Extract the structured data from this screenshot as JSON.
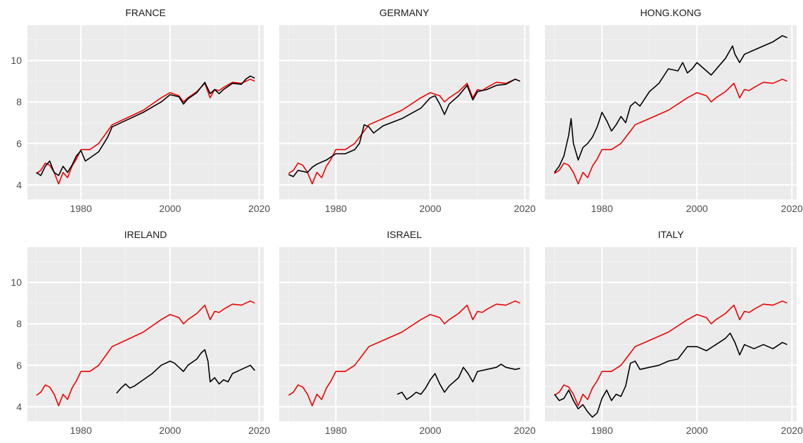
{
  "colors": {
    "panel_background": "#ebebeb",
    "grid_major": "#ffffff",
    "grid_minor": "#f3f3f3",
    "series_red": "#ee0000",
    "series_black": "#000000"
  },
  "chart_data": [
    {
      "type": "line",
      "title": "FRANCE",
      "xlim": [
        1968,
        2021
      ],
      "ylim": [
        3.3,
        11.7
      ],
      "xticks": [
        1980,
        2000,
        2020
      ],
      "yticks": [
        4,
        6,
        8,
        10
      ],
      "grid": true,
      "series": [
        {
          "color": "#ee0000",
          "x": [
            1970,
            1971,
            1972,
            1973,
            1974,
            1975,
            1976,
            1977,
            1978,
            1979,
            1980,
            1982,
            1984,
            1986,
            1987,
            1990,
            1994,
            1998,
            2000,
            2002,
            2003,
            2004,
            2006,
            2007.8,
            2009,
            2010,
            2011,
            2012,
            2014,
            2016,
            2018,
            2019
          ],
          "y": [
            4.55,
            4.7,
            5.05,
            4.95,
            4.6,
            4.05,
            4.6,
            4.35,
            4.9,
            5.25,
            5.7,
            5.7,
            6.0,
            6.6,
            6.9,
            7.2,
            7.6,
            8.2,
            8.45,
            8.3,
            8.0,
            8.2,
            8.5,
            8.9,
            8.2,
            8.6,
            8.55,
            8.7,
            8.95,
            8.9,
            9.1,
            9.0
          ]
        },
        {
          "color": "#000000",
          "x": [
            1970,
            1971,
            1972,
            1973,
            1974,
            1975,
            1976,
            1977,
            1978,
            1979,
            1980,
            1981,
            1982,
            1984,
            1986,
            1987,
            1990,
            1994,
            1998,
            2000,
            2002,
            2003,
            2004,
            2006,
            2007.8,
            2009,
            2010,
            2011,
            2012,
            2014,
            2016,
            2017,
            2018,
            2019
          ],
          "y": [
            4.6,
            4.45,
            4.9,
            5.15,
            4.6,
            4.45,
            4.9,
            4.6,
            4.95,
            5.4,
            5.65,
            5.15,
            5.3,
            5.6,
            6.3,
            6.8,
            7.1,
            7.5,
            8.0,
            8.35,
            8.25,
            7.9,
            8.15,
            8.45,
            8.95,
            8.4,
            8.6,
            8.4,
            8.6,
            8.9,
            8.85,
            9.1,
            9.25,
            9.15
          ]
        }
      ]
    },
    {
      "type": "line",
      "title": "GERMANY",
      "xlim": [
        1968,
        2021
      ],
      "ylim": [
        3.3,
        11.7
      ],
      "xticks": [
        1980,
        2000,
        2020
      ],
      "yticks": [
        4,
        6,
        8,
        10
      ],
      "grid": true,
      "series": [
        {
          "color": "#ee0000",
          "x": [
            1970,
            1971,
            1972,
            1973,
            1974,
            1975,
            1976,
            1977,
            1978,
            1979,
            1980,
            1982,
            1984,
            1986,
            1987,
            1990,
            1994,
            1998,
            2000,
            2002,
            2003,
            2004,
            2006,
            2007.8,
            2009,
            2010,
            2011,
            2012,
            2014,
            2016,
            2018,
            2019
          ],
          "y": [
            4.55,
            4.7,
            5.05,
            4.95,
            4.6,
            4.05,
            4.6,
            4.35,
            4.9,
            5.25,
            5.7,
            5.7,
            6.0,
            6.6,
            6.9,
            7.2,
            7.6,
            8.2,
            8.45,
            8.3,
            8.0,
            8.2,
            8.5,
            8.9,
            8.2,
            8.6,
            8.55,
            8.7,
            8.95,
            8.9,
            9.1,
            9.0
          ]
        },
        {
          "color": "#000000",
          "x": [
            1970,
            1971,
            1972,
            1974,
            1975,
            1976,
            1978,
            1980,
            1982,
            1984,
            1985,
            1986,
            1987,
            1988,
            1990,
            1994,
            1998,
            2000,
            2001,
            2002,
            2003,
            2004,
            2006,
            2007.8,
            2009,
            2010,
            2012,
            2014,
            2016,
            2018,
            2019
          ],
          "y": [
            4.5,
            4.4,
            4.7,
            4.6,
            4.85,
            5.0,
            5.2,
            5.5,
            5.5,
            5.7,
            6.0,
            6.9,
            6.8,
            6.5,
            6.85,
            7.2,
            7.7,
            8.2,
            8.3,
            7.9,
            7.4,
            7.9,
            8.3,
            8.8,
            8.1,
            8.5,
            8.6,
            8.8,
            8.85,
            9.1,
            9.0
          ]
        }
      ]
    },
    {
      "type": "line",
      "title": "HONG.KONG",
      "xlim": [
        1968,
        2021
      ],
      "ylim": [
        3.3,
        11.7
      ],
      "xticks": [
        1980,
        2000,
        2020
      ],
      "yticks": [
        4,
        6,
        8,
        10
      ],
      "grid": true,
      "series": [
        {
          "color": "#ee0000",
          "x": [
            1970,
            1971,
            1972,
            1973,
            1974,
            1975,
            1976,
            1977,
            1978,
            1979,
            1980,
            1982,
            1984,
            1986,
            1987,
            1990,
            1994,
            1998,
            2000,
            2002,
            2003,
            2004,
            2006,
            2007.8,
            2009,
            2010,
            2011,
            2012,
            2014,
            2016,
            2018,
            2019
          ],
          "y": [
            4.55,
            4.7,
            5.05,
            4.95,
            4.6,
            4.05,
            4.6,
            4.35,
            4.9,
            5.25,
            5.7,
            5.7,
            6.0,
            6.6,
            6.9,
            7.2,
            7.6,
            8.2,
            8.45,
            8.3,
            8.0,
            8.2,
            8.5,
            8.9,
            8.2,
            8.6,
            8.55,
            8.7,
            8.95,
            8.9,
            9.1,
            9.0
          ]
        },
        {
          "color": "#000000",
          "x": [
            1970,
            1971,
            1972,
            1973,
            1973.5,
            1974,
            1975,
            1976,
            1977,
            1978,
            1979,
            1980,
            1981,
            1982,
            1983,
            1984,
            1985,
            1986,
            1987,
            1988,
            1990,
            1992,
            1994,
            1996,
            1997,
            1998,
            1999,
            2000,
            2002,
            2003,
            2006,
            2007,
            2007.5,
            2008,
            2009,
            2010,
            2012,
            2014,
            2016,
            2018,
            2019
          ],
          "y": [
            4.6,
            4.9,
            5.4,
            6.4,
            7.2,
            6.0,
            5.2,
            5.8,
            6.0,
            6.3,
            6.8,
            7.5,
            7.1,
            6.6,
            6.9,
            7.3,
            7.0,
            7.8,
            8.0,
            7.8,
            8.5,
            8.9,
            9.6,
            9.5,
            9.9,
            9.4,
            9.6,
            9.9,
            9.5,
            9.3,
            10.1,
            10.5,
            10.7,
            10.3,
            9.9,
            10.3,
            10.5,
            10.7,
            10.9,
            11.2,
            11.1
          ]
        }
      ]
    },
    {
      "type": "line",
      "title": "IRELAND",
      "xlim": [
        1968,
        2021
      ],
      "ylim": [
        3.3,
        11.7
      ],
      "xticks": [
        1980,
        2000,
        2020
      ],
      "yticks": [
        4,
        6,
        8,
        10
      ],
      "grid": true,
      "series": [
        {
          "color": "#ee0000",
          "x": [
            1970,
            1971,
            1972,
            1973,
            1974,
            1975,
            1976,
            1977,
            1978,
            1979,
            1980,
            1982,
            1984,
            1986,
            1987,
            1990,
            1994,
            1998,
            2000,
            2002,
            2003,
            2004,
            2006,
            2007.8,
            2009,
            2010,
            2011,
            2012,
            2014,
            2016,
            2018,
            2019
          ],
          "y": [
            4.55,
            4.7,
            5.05,
            4.95,
            4.6,
            4.05,
            4.6,
            4.35,
            4.9,
            5.25,
            5.7,
            5.7,
            6.0,
            6.6,
            6.9,
            7.2,
            7.6,
            8.2,
            8.45,
            8.3,
            8.0,
            8.2,
            8.5,
            8.9,
            8.2,
            8.6,
            8.55,
            8.7,
            8.95,
            8.9,
            9.1,
            9.0
          ]
        },
        {
          "color": "#000000",
          "x": [
            1988,
            1989,
            1990,
            1991,
            1992,
            1994,
            1996,
            1998,
            2000,
            2001,
            2002,
            2003,
            2004,
            2006,
            2007,
            2007.8,
            2008.5,
            2009,
            2010,
            2011,
            2012,
            2013,
            2014,
            2016,
            2018,
            2019
          ],
          "y": [
            4.65,
            4.9,
            5.1,
            4.9,
            5.0,
            5.3,
            5.6,
            6.0,
            6.2,
            6.1,
            5.9,
            5.7,
            6.0,
            6.3,
            6.6,
            6.75,
            6.2,
            5.2,
            5.4,
            5.1,
            5.3,
            5.2,
            5.6,
            5.8,
            6.0,
            5.75
          ]
        }
      ]
    },
    {
      "type": "line",
      "title": "ISRAEL",
      "xlim": [
        1968,
        2021
      ],
      "ylim": [
        3.3,
        11.7
      ],
      "xticks": [
        1980,
        2000,
        2020
      ],
      "yticks": [
        4,
        6,
        8,
        10
      ],
      "grid": true,
      "series": [
        {
          "color": "#ee0000",
          "x": [
            1970,
            1971,
            1972,
            1973,
            1974,
            1975,
            1976,
            1977,
            1978,
            1979,
            1980,
            1982,
            1984,
            1986,
            1987,
            1990,
            1994,
            1998,
            2000,
            2002,
            2003,
            2004,
            2006,
            2007.8,
            2009,
            2010,
            2011,
            2012,
            2014,
            2016,
            2018,
            2019
          ],
          "y": [
            4.55,
            4.7,
            5.05,
            4.95,
            4.6,
            4.05,
            4.6,
            4.35,
            4.9,
            5.25,
            5.7,
            5.7,
            6.0,
            6.6,
            6.9,
            7.2,
            7.6,
            8.2,
            8.45,
            8.3,
            8.0,
            8.2,
            8.5,
            8.9,
            8.2,
            8.6,
            8.55,
            8.7,
            8.95,
            8.9,
            9.1,
            9.0
          ]
        },
        {
          "color": "#000000",
          "x": [
            1993,
            1994,
            1995,
            1996,
            1997,
            1998,
            1999,
            2000,
            2001,
            2002,
            2003,
            2004,
            2006,
            2007,
            2008,
            2009,
            2010,
            2012,
            2014,
            2015,
            2016,
            2018,
            2019
          ],
          "y": [
            4.6,
            4.7,
            4.35,
            4.5,
            4.7,
            4.6,
            4.9,
            5.3,
            5.6,
            5.1,
            4.7,
            5.0,
            5.4,
            5.9,
            5.6,
            5.2,
            5.7,
            5.8,
            5.9,
            6.05,
            5.9,
            5.8,
            5.85
          ]
        }
      ]
    },
    {
      "type": "line",
      "title": "ITALY",
      "xlim": [
        1968,
        2021
      ],
      "ylim": [
        3.3,
        11.7
      ],
      "xticks": [
        1980,
        2000,
        2020
      ],
      "yticks": [
        4,
        6,
        8,
        10
      ],
      "grid": true,
      "series": [
        {
          "color": "#ee0000",
          "x": [
            1970,
            1971,
            1972,
            1973,
            1974,
            1975,
            1976,
            1977,
            1978,
            1979,
            1980,
            1982,
            1984,
            1986,
            1987,
            1990,
            1994,
            1998,
            2000,
            2002,
            2003,
            2004,
            2006,
            2007.8,
            2009,
            2010,
            2011,
            2012,
            2014,
            2016,
            2018,
            2019
          ],
          "y": [
            4.55,
            4.7,
            5.05,
            4.95,
            4.6,
            4.05,
            4.6,
            4.35,
            4.9,
            5.25,
            5.7,
            5.7,
            6.0,
            6.6,
            6.9,
            7.2,
            7.6,
            8.2,
            8.45,
            8.3,
            8.0,
            8.2,
            8.5,
            8.9,
            8.2,
            8.6,
            8.55,
            8.7,
            8.95,
            8.9,
            9.1,
            9.0
          ]
        },
        {
          "color": "#000000",
          "x": [
            1970,
            1971,
            1972,
            1973,
            1974,
            1975,
            1976,
            1977,
            1978,
            1979,
            1980,
            1981,
            1982,
            1983,
            1984,
            1985,
            1986,
            1987,
            1988,
            1990,
            1992,
            1994,
            1996,
            1998,
            2000,
            2002,
            2004,
            2006,
            2007,
            2008,
            2009,
            2010,
            2012,
            2014,
            2016,
            2018,
            2019
          ],
          "y": [
            4.6,
            4.3,
            4.4,
            4.8,
            4.3,
            3.9,
            4.1,
            3.75,
            3.5,
            3.7,
            4.4,
            4.8,
            4.3,
            4.6,
            4.5,
            5.0,
            6.1,
            6.2,
            5.8,
            5.9,
            6.0,
            6.2,
            6.3,
            6.9,
            6.9,
            6.7,
            7.0,
            7.3,
            7.55,
            7.1,
            6.5,
            7.0,
            6.8,
            7.0,
            6.8,
            7.1,
            7.0
          ]
        }
      ]
    }
  ]
}
